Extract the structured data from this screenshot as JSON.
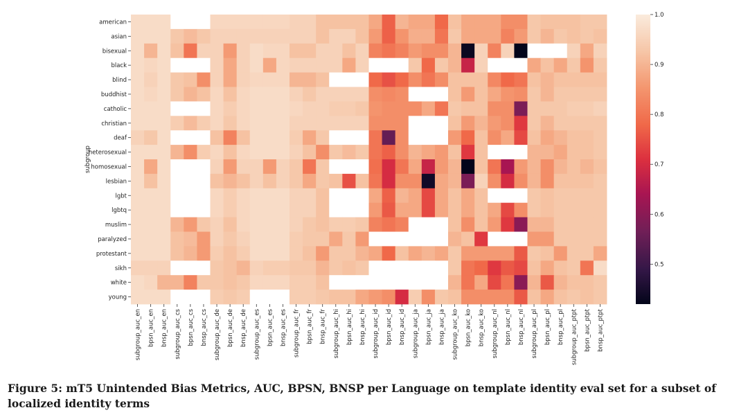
{
  "chart_data": {
    "type": "heatmap",
    "ylabel": "subgroup",
    "xlabel": "",
    "rows": [
      "american",
      "asian",
      "bisexual",
      "black",
      "blind",
      "buddhist",
      "catholic",
      "christian",
      "deaf",
      "heterosexual",
      "homosexual",
      "lesbian",
      "lgbt",
      "lgbtq",
      "muslim",
      "paralyzed",
      "protestant",
      "sikh",
      "white",
      "young"
    ],
    "columns": [
      "subgroup_auc_en",
      "bpsn_auc_en",
      "bnsp_auc_en",
      "subgroup_auc_cs",
      "bpsn_auc_cs",
      "bnsp_auc_cs",
      "subgroup_auc_de",
      "bpsn_auc_de",
      "bnsp_auc_de",
      "subgroup_auc_es",
      "bpsn_auc_es",
      "bnsp_auc_es",
      "subgroup_auc_fr",
      "bpsn_auc_fr",
      "bnsp_auc_fr",
      "subgroup_auc_hi",
      "bpsn_auc_hi",
      "bnsp_auc_hi",
      "subgroup_auc_id",
      "bpsn_auc_id",
      "bnsp_auc_id",
      "subgroup_auc_ja",
      "bpsn_auc_ja",
      "bnsp_auc_ja",
      "subgroup_auc_ko",
      "bpsn_auc_ko",
      "bnsp_auc_ko",
      "subgroup_auc_nl",
      "bpsn_auc_nl",
      "bnsp_auc_nl",
      "subgroup_auc_pl",
      "bpsn_auc_pl",
      "bnsp_auc_pl",
      "subgroup_auc_ptpt",
      "bpsn_auc_ptpt",
      "bnsp_auc_ptpt"
    ],
    "values": [
      [
        0.97,
        0.97,
        0.97,
        null,
        null,
        null,
        0.96,
        0.96,
        0.96,
        0.96,
        0.96,
        0.96,
        0.95,
        0.95,
        0.92,
        0.92,
        0.92,
        0.92,
        0.88,
        0.77,
        0.9,
        0.88,
        0.88,
        0.78,
        0.92,
        0.88,
        0.88,
        0.88,
        0.84,
        0.84,
        0.93,
        0.92,
        0.92,
        0.92,
        0.93,
        0.93
      ],
      [
        0.97,
        0.97,
        0.97,
        0.93,
        0.91,
        0.93,
        0.95,
        0.95,
        0.95,
        0.95,
        0.95,
        0.95,
        0.95,
        0.95,
        0.92,
        0.95,
        0.95,
        0.92,
        0.86,
        0.77,
        0.85,
        0.89,
        0.89,
        0.8,
        0.93,
        0.88,
        0.88,
        0.88,
        0.82,
        0.86,
        0.93,
        0.9,
        0.93,
        0.92,
        0.93,
        0.92
      ],
      [
        0.97,
        0.9,
        0.97,
        0.92,
        0.8,
        0.95,
        0.95,
        0.86,
        0.95,
        0.97,
        0.96,
        0.96,
        0.92,
        0.92,
        0.95,
        0.95,
        0.92,
        0.95,
        0.82,
        0.8,
        0.82,
        0.86,
        0.84,
        0.84,
        0.9,
        0.43,
        0.95,
        0.82,
        0.95,
        0.42,
        null,
        null,
        null,
        0.95,
        0.88,
        0.95
      ],
      [
        0.97,
        0.96,
        0.97,
        null,
        null,
        null,
        0.95,
        0.88,
        0.95,
        0.97,
        0.88,
        0.96,
        0.95,
        0.95,
        0.95,
        0.95,
        0.88,
        0.95,
        null,
        null,
        null,
        0.93,
        0.78,
        0.93,
        0.9,
        0.68,
        0.95,
        null,
        null,
        null,
        0.88,
        0.92,
        0.88,
        0.93,
        0.85,
        0.93
      ],
      [
        0.97,
        0.95,
        0.97,
        0.93,
        0.92,
        0.84,
        0.95,
        0.88,
        0.95,
        0.96,
        0.96,
        0.96,
        0.9,
        0.9,
        0.92,
        null,
        null,
        null,
        0.78,
        0.75,
        0.78,
        0.84,
        0.8,
        0.84,
        0.92,
        0.92,
        0.92,
        0.83,
        0.78,
        0.8,
        0.92,
        0.9,
        0.92,
        0.92,
        0.92,
        0.92
      ],
      [
        0.97,
        0.96,
        0.97,
        0.93,
        0.9,
        0.92,
        0.96,
        0.92,
        0.96,
        0.97,
        0.97,
        0.97,
        0.95,
        0.93,
        0.95,
        0.95,
        0.95,
        0.95,
        0.84,
        0.83,
        0.84,
        null,
        null,
        null,
        0.92,
        0.86,
        0.92,
        0.88,
        0.85,
        0.84,
        0.93,
        0.9,
        0.93,
        0.93,
        0.93,
        0.93
      ],
      [
        0.97,
        0.97,
        0.97,
        null,
        null,
        null,
        0.96,
        0.94,
        0.96,
        0.97,
        0.97,
        0.97,
        0.96,
        0.95,
        0.95,
        0.94,
        0.94,
        0.93,
        0.85,
        0.84,
        0.84,
        0.84,
        0.88,
        0.8,
        0.93,
        0.92,
        0.92,
        0.84,
        0.84,
        0.58,
        0.93,
        0.93,
        0.93,
        0.94,
        0.94,
        0.95
      ],
      [
        0.97,
        0.97,
        0.97,
        0.94,
        0.91,
        0.94,
        0.96,
        0.93,
        0.96,
        0.97,
        0.97,
        0.97,
        0.95,
        0.95,
        0.95,
        0.95,
        0.95,
        0.95,
        0.84,
        0.84,
        0.84,
        null,
        null,
        null,
        0.92,
        0.86,
        0.9,
        0.86,
        0.84,
        0.72,
        0.93,
        0.9,
        0.93,
        0.93,
        0.93,
        0.93
      ],
      [
        0.95,
        0.93,
        0.97,
        null,
        null,
        null,
        0.92,
        0.82,
        0.92,
        0.97,
        0.97,
        0.97,
        0.94,
        0.88,
        0.93,
        null,
        null,
        null,
        0.8,
        0.55,
        0.84,
        null,
        null,
        null,
        0.86,
        0.78,
        0.92,
        0.84,
        0.88,
        0.74,
        0.92,
        0.88,
        0.9,
        0.92,
        0.92,
        0.93
      ],
      [
        0.97,
        0.97,
        0.97,
        0.9,
        0.84,
        0.94,
        0.96,
        0.92,
        0.96,
        0.97,
        0.97,
        0.97,
        0.95,
        0.92,
        0.84,
        0.93,
        0.91,
        0.93,
        0.8,
        0.77,
        0.84,
        0.9,
        0.88,
        0.86,
        0.92,
        0.72,
        0.92,
        null,
        null,
        null,
        0.9,
        0.9,
        0.88,
        0.92,
        0.92,
        0.93
      ],
      [
        0.97,
        0.88,
        0.97,
        null,
        null,
        null,
        0.95,
        0.86,
        0.95,
        0.95,
        0.86,
        0.95,
        0.93,
        0.8,
        0.93,
        null,
        null,
        null,
        0.79,
        0.7,
        0.8,
        0.88,
        0.68,
        0.86,
        0.9,
        0.42,
        0.92,
        0.8,
        0.64,
        0.86,
        0.9,
        0.84,
        0.9,
        0.92,
        0.9,
        0.92
      ],
      [
        0.97,
        0.92,
        0.97,
        null,
        null,
        null,
        0.92,
        0.9,
        0.92,
        0.95,
        0.92,
        0.95,
        0.93,
        0.88,
        0.93,
        0.92,
        0.75,
        0.92,
        0.8,
        0.7,
        0.84,
        0.84,
        0.44,
        0.88,
        0.9,
        0.58,
        0.95,
        0.84,
        0.7,
        0.84,
        0.9,
        0.84,
        0.92,
        0.92,
        0.92,
        0.93
      ],
      [
        0.97,
        0.97,
        0.97,
        null,
        null,
        null,
        0.96,
        0.94,
        0.96,
        0.97,
        0.97,
        0.97,
        0.95,
        0.95,
        0.92,
        null,
        null,
        null,
        0.88,
        0.77,
        0.9,
        0.88,
        0.74,
        0.88,
        0.92,
        0.88,
        0.92,
        null,
        null,
        null,
        0.93,
        0.92,
        0.93,
        0.93,
        0.93,
        0.93
      ],
      [
        0.97,
        0.97,
        0.97,
        null,
        null,
        null,
        0.96,
        0.94,
        0.96,
        0.97,
        0.97,
        0.97,
        0.95,
        0.95,
        0.92,
        null,
        null,
        null,
        0.86,
        0.76,
        0.88,
        0.88,
        0.74,
        0.88,
        0.92,
        0.88,
        0.92,
        0.88,
        0.74,
        0.84,
        0.93,
        0.92,
        0.93,
        0.93,
        0.93,
        0.93
      ],
      [
        0.97,
        0.97,
        0.97,
        0.9,
        0.86,
        0.93,
        0.95,
        0.92,
        0.96,
        0.97,
        0.97,
        0.97,
        0.95,
        0.93,
        0.92,
        0.94,
        0.94,
        0.93,
        0.82,
        0.8,
        0.82,
        null,
        null,
        null,
        0.92,
        0.84,
        0.92,
        0.86,
        0.72,
        0.6,
        0.9,
        0.9,
        0.93,
        0.93,
        0.93,
        0.93
      ],
      [
        0.97,
        0.97,
        0.97,
        0.92,
        0.91,
        0.86,
        0.95,
        0.93,
        0.95,
        0.97,
        0.97,
        0.97,
        0.94,
        0.93,
        0.93,
        0.88,
        0.93,
        0.86,
        null,
        null,
        null,
        null,
        null,
        null,
        0.9,
        0.92,
        0.72,
        null,
        null,
        null,
        0.86,
        0.86,
        0.93,
        0.93,
        0.93,
        0.93
      ],
      [
        0.97,
        0.97,
        0.97,
        0.92,
        0.9,
        0.86,
        0.94,
        0.92,
        0.94,
        0.97,
        0.97,
        0.97,
        0.94,
        0.92,
        0.86,
        0.93,
        0.93,
        0.9,
        0.88,
        0.78,
        0.92,
        0.88,
        0.9,
        0.88,
        0.93,
        0.86,
        0.86,
        0.86,
        0.86,
        0.76,
        0.93,
        0.92,
        0.86,
        0.93,
        0.93,
        0.88
      ],
      [
        0.95,
        0.95,
        0.95,
        null,
        null,
        null,
        0.93,
        0.92,
        0.9,
        0.95,
        0.94,
        0.94,
        0.93,
        0.93,
        0.9,
        0.93,
        0.92,
        0.93,
        null,
        null,
        null,
        null,
        null,
        null,
        0.93,
        0.8,
        0.78,
        0.72,
        0.76,
        0.74,
        0.92,
        0.88,
        0.92,
        0.93,
        0.8,
        0.97
      ],
      [
        0.97,
        0.96,
        0.9,
        0.9,
        0.82,
        0.93,
        0.93,
        0.92,
        0.93,
        0.96,
        0.96,
        0.96,
        0.94,
        0.94,
        0.92,
        null,
        null,
        null,
        null,
        null,
        null,
        null,
        null,
        null,
        0.9,
        0.8,
        0.88,
        0.74,
        0.8,
        0.6,
        0.9,
        0.76,
        0.9,
        0.92,
        0.92,
        0.93
      ],
      [
        0.97,
        0.97,
        0.97,
        null,
        null,
        null,
        0.94,
        0.93,
        0.94,
        null,
        null,
        null,
        0.94,
        0.94,
        0.93,
        0.92,
        0.92,
        0.88,
        0.86,
        0.84,
        0.7,
        0.94,
        0.84,
        0.93,
        0.92,
        0.84,
        0.84,
        0.84,
        0.84,
        0.76,
        0.92,
        0.88,
        0.92,
        0.93,
        0.92,
        0.93
      ]
    ],
    "colorbar": {
      "min": 0.42,
      "max": 1.0,
      "ticks": [
        0.5,
        0.6,
        0.7,
        0.8,
        0.9,
        1.0
      ],
      "tick_labels": [
        "0.5",
        "0.6",
        "0.7",
        "0.8",
        "0.9",
        "1.0"
      ],
      "colormap": "rocket"
    },
    "missing_color": "#ffffff"
  },
  "caption": "Figure 5: mT5 Unintended Bias Metrics, AUC, BPSN, BNSP per Language on template identity eval set for a subset of localized identity terms"
}
